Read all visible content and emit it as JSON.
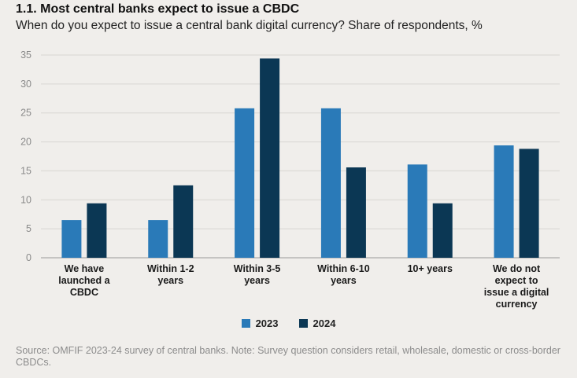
{
  "header": {
    "title": "1.1. Most central banks expect to issue a CBDC",
    "subtitle": "When do you expect to issue a central bank digital currency? Share of respondents, %"
  },
  "chart_data": {
    "type": "bar",
    "categories": [
      [
        "We have",
        "launched a",
        "CBDC"
      ],
      [
        "Within 1-2",
        "years"
      ],
      [
        "Within 3-5",
        "years"
      ],
      [
        "Within 6-10",
        "years"
      ],
      [
        "10+ years"
      ],
      [
        "We do not",
        "expect to",
        "issue a digital",
        "currency"
      ]
    ],
    "series": [
      {
        "name": "2023",
        "color": "#2a7ab8",
        "values": [
          6.5,
          6.5,
          25.8,
          25.8,
          16.1,
          19.4
        ]
      },
      {
        "name": "2024",
        "color": "#0b3754",
        "values": [
          9.4,
          12.5,
          34.4,
          15.6,
          9.4,
          18.8
        ]
      }
    ],
    "ylim": [
      0,
      35
    ],
    "yticks": [
      0,
      5,
      10,
      15,
      20,
      25,
      30,
      35
    ],
    "grid": true,
    "legend": "bottom"
  },
  "source": "Source: OMFIF 2023-24 survey of central banks. Note: Survey question considers retail, wholesale, domestic or cross-border CBDCs."
}
